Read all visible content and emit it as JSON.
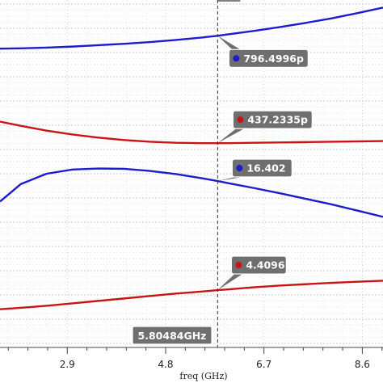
{
  "chart_data": {
    "type": "line",
    "xlabel": "freq (GHz)",
    "x_ticks": [
      2.9,
      4.8,
      6.7,
      8.6
    ],
    "x_tick_labels": [
      "2.9",
      "4.8",
      "6.7",
      "8.6"
    ],
    "xlim": [
      1.6,
      9.0
    ],
    "grid": true,
    "x": [
      1.6,
      2.0,
      2.5,
      3.0,
      3.5,
      4.0,
      4.5,
      5.0,
      5.5,
      5.80484,
      6.0,
      6.5,
      7.0,
      7.5,
      8.0,
      8.5,
      9.0
    ],
    "series": [
      {
        "color": "#1c1ccc",
        "values": [
          0.86,
          0.861,
          0.863,
          0.866,
          0.87,
          0.874,
          0.879,
          0.885,
          0.892,
          0.897,
          0.901,
          0.911,
          0.922,
          0.934,
          0.947,
          0.962,
          0.978
        ]
      },
      {
        "color": "#c81414",
        "values": [
          0.65,
          0.638,
          0.624,
          0.613,
          0.604,
          0.597,
          0.592,
          0.589,
          0.588,
          0.588,
          0.588,
          0.589,
          0.59,
          0.591,
          0.592,
          0.593,
          0.594
        ]
      },
      {
        "color": "#1c1ccc",
        "values": [
          0.42,
          0.47,
          0.5,
          0.512,
          0.515,
          0.514,
          0.508,
          0.499,
          0.487,
          0.479,
          0.473,
          0.459,
          0.444,
          0.428,
          0.412,
          0.394,
          0.376
        ]
      },
      {
        "color": "#c81414",
        "values": [
          0.11,
          0.114,
          0.12,
          0.127,
          0.134,
          0.141,
          0.148,
          0.155,
          0.161,
          0.165,
          0.167,
          0.173,
          0.178,
          0.182,
          0.186,
          0.189,
          0.192
        ]
      }
    ],
    "cursor": {
      "x": 5.80484,
      "label": "5.80484GHz"
    },
    "markers": [
      {
        "series_index": 0,
        "text": "796.4996p",
        "dot_color": "#1c1ccc"
      },
      {
        "series_index": 1,
        "text": "437.2335p",
        "dot_color": "#c81414"
      },
      {
        "series_index": 2,
        "text": "16.402",
        "dot_color": "#1c1ccc"
      },
      {
        "series_index": 3,
        "text": "4.4096",
        "dot_color": "#c81414"
      }
    ]
  }
}
